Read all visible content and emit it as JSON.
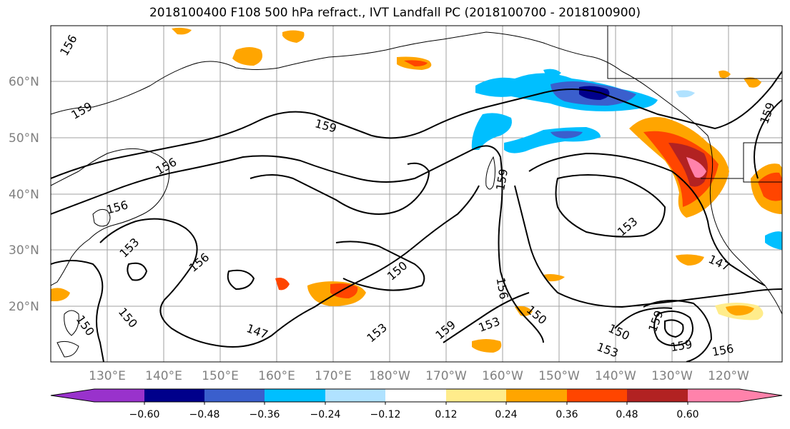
{
  "title": "2018100400 F108 500 hPa refract., IVT Landfall PC (2018100700 - 2018100900)",
  "lat_labels": [
    "60°N",
    "50°N",
    "40°N",
    "30°N",
    "20°N"
  ],
  "lon_labels": [
    "130°E",
    "140°E",
    "150°E",
    "160°E",
    "170°E",
    "180°W",
    "170°W",
    "160°W",
    "150°W",
    "140°W",
    "130°W",
    "120°W"
  ],
  "colorbar": {
    "ticks": [
      "−0.60",
      "−0.48",
      "−0.36",
      "−0.24",
      "−0.12",
      "0.12",
      "0.24",
      "0.36",
      "0.48",
      "0.60"
    ],
    "colors": [
      "#9932cc",
      "#00008b",
      "#3a5fcd",
      "#00bfff",
      "#b0e2ff",
      "#ffffff",
      "#ffec8b",
      "#ffa500",
      "#ff4500",
      "#b22222",
      "#ff82ab"
    ]
  },
  "contour_labels": [
    "156",
    "159",
    "156",
    "156",
    "153",
    "156",
    "159",
    "150",
    "150",
    "147",
    "153",
    "159",
    "153",
    "156",
    "159",
    "150",
    "153",
    "150",
    "153",
    "159",
    "156",
    "147",
    "159",
    "150",
    "159"
  ],
  "shading_colors": {
    "light_yellow": "#ffec8b",
    "orange": "#ffa500",
    "red_orange": "#ff4500",
    "dark_red": "#b22222",
    "pink": "#ff82ab",
    "light_blue": "#b0e2ff",
    "sky_blue": "#00bfff",
    "blue": "#3a5fcd",
    "navy": "#00008b"
  }
}
